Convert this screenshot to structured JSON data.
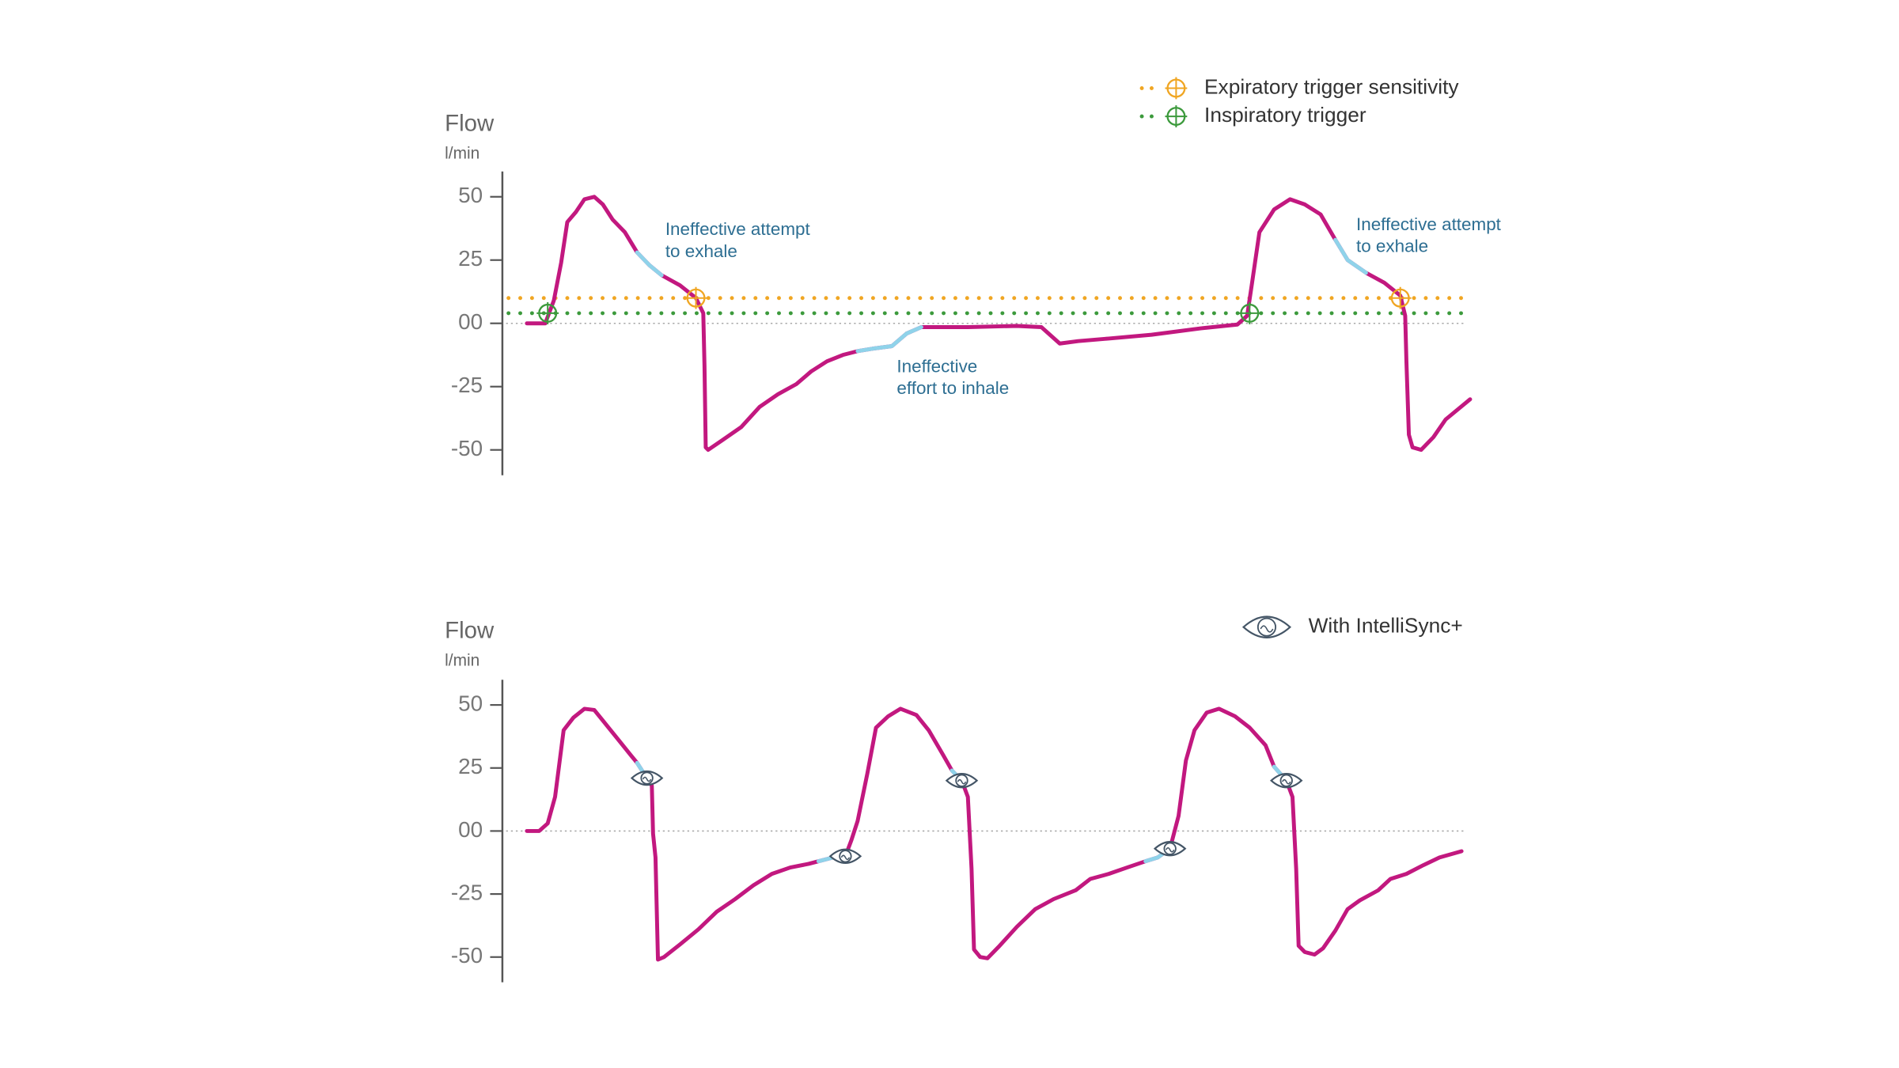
{
  "chart_data": [
    {
      "type": "line",
      "y_label": "Flow",
      "y_unit": "l/min",
      "ylim": [
        -60,
        60
      ],
      "yticks": [
        50,
        25,
        {
          "value": 0,
          "label": "00"
        },
        -25,
        -50
      ],
      "xlim": [
        0,
        800
      ],
      "x": [
        20,
        35,
        42,
        48,
        53,
        60,
        67,
        75,
        82,
        90,
        100,
        110,
        120,
        130,
        145,
        158,
        164,
        165,
        166,
        168,
        180,
        195,
        210,
        225,
        240,
        252,
        265,
        278,
        290,
        302,
        318,
        330,
        342,
        380,
        420,
        440,
        455,
        470,
        495,
        530,
        570,
        600,
        608,
        612,
        618,
        630,
        643,
        655,
        668,
        680,
        690,
        705,
        720,
        733,
        737,
        738,
        740,
        743,
        750,
        760,
        770,
        790
      ],
      "series": [
        {
          "color": "#c2187f",
          "values": [
            0,
            0,
            9,
            24,
            40,
            44,
            49,
            50,
            47,
            41,
            36,
            28,
            23,
            19,
            15,
            10,
            4,
            -17,
            -49,
            -50,
            -46,
            -41,
            -33,
            -28,
            -24,
            -19,
            -15,
            -12.5,
            -11,
            -10,
            -9,
            -4,
            -1.5,
            -1.5,
            -1,
            -1.5,
            -8,
            -7,
            -6,
            -4.5,
            -2,
            -0.5,
            3,
            16,
            36,
            45,
            49,
            47,
            43,
            33,
            25,
            20,
            16,
            11,
            3,
            -15,
            -44,
            -49,
            -50,
            -45,
            -38,
            -30
          ]
        },
        {
          "color": "#8fd3ea",
          "values": [
            null,
            null,
            null,
            null,
            null,
            null,
            null,
            null,
            null,
            null,
            null,
            28,
            23,
            19,
            null,
            null,
            null,
            null,
            null,
            null,
            null,
            null,
            null,
            null,
            null,
            null,
            null,
            null,
            -11,
            -10,
            -9,
            -4,
            -1.5,
            null,
            null,
            null,
            null,
            null,
            null,
            null,
            null,
            null,
            null,
            null,
            null,
            null,
            null,
            null,
            null,
            33,
            25,
            20,
            null,
            null,
            null,
            null,
            null,
            null,
            null,
            null,
            null,
            null
          ]
        }
      ],
      "zero_line": true,
      "reference_lines": [
        {
          "label": "Expiratory trigger sensitivity",
          "value": 10,
          "color": "#f0a623",
          "marker_x": [
            158,
            733
          ]
        },
        {
          "label": "Inspiratory trigger",
          "value": 4,
          "color": "#3c9a3c",
          "marker_x": [
            37,
            610
          ]
        }
      ],
      "annotations": [
        [
          "Ineffective attempt",
          "to exhale"
        ],
        [
          "Ineffective",
          "effort to inhale"
        ],
        [
          "Ineffective attempt",
          "to exhale"
        ]
      ],
      "annotation_color": "#2d6e92"
    },
    {
      "type": "line",
      "y_label": "Flow",
      "y_unit": "l/min",
      "ylim": [
        -60,
        60
      ],
      "yticks": [
        50,
        25,
        {
          "value": 0,
          "label": "00"
        },
        -25,
        -50
      ],
      "xlim": [
        0,
        800
      ],
      "x": [
        20,
        30,
        37,
        43,
        50,
        58,
        67,
        75,
        85,
        95,
        105,
        110,
        118,
        122,
        123,
        125,
        127,
        132,
        145,
        160,
        175,
        190,
        205,
        220,
        235,
        250,
        258,
        270,
        280,
        285,
        290,
        298,
        305,
        315,
        325,
        338,
        348,
        360,
        367,
        375,
        380,
        383,
        385,
        390,
        396,
        405,
        420,
        435,
        450,
        468,
        480,
        495,
        510,
        525,
        535,
        545,
        552,
        558,
        565,
        575,
        585,
        598,
        610,
        623,
        630,
        640,
        645,
        648,
        650,
        655,
        663,
        670,
        680,
        690,
        700,
        715,
        725,
        738,
        752,
        765,
        783
      ],
      "series": [
        {
          "color": "#c2187f",
          "values": [
            0,
            0,
            3,
            13.5,
            40,
            45,
            48.5,
            48,
            42,
            36,
            30,
            27,
            21,
            18,
            -1,
            -10.5,
            -51,
            -50,
            -45,
            -39,
            -32,
            -27,
            -21.5,
            -17,
            -14.5,
            -13,
            -12,
            -10.5,
            -10,
            -3.5,
            4,
            23,
            41,
            45.5,
            48.5,
            46,
            40,
            30,
            24,
            20,
            13.5,
            -15,
            -47,
            -50,
            -50.5,
            -46,
            -38,
            -31,
            -27,
            -23.5,
            -19,
            -17,
            -14.5,
            -12,
            -10.5,
            -7,
            6,
            28,
            40,
            47,
            48.5,
            45.5,
            41,
            34,
            25.5,
            20,
            13.5,
            -15,
            -45.5,
            -48,
            -49,
            -46.5,
            -39.5,
            -31,
            -27.5,
            -23.5,
            -19,
            -17,
            -13.5,
            -10.5,
            -8
          ]
        },
        {
          "color": "#8fd3ea",
          "values": [
            null,
            null,
            null,
            null,
            null,
            null,
            null,
            null,
            null,
            null,
            null,
            27,
            21,
            null,
            null,
            null,
            null,
            null,
            null,
            null,
            null,
            null,
            null,
            null,
            null,
            null,
            -12,
            -10.5,
            -10,
            null,
            null,
            null,
            null,
            null,
            null,
            null,
            null,
            null,
            24,
            20,
            null,
            null,
            null,
            null,
            null,
            null,
            null,
            null,
            null,
            null,
            null,
            null,
            null,
            -12,
            -10.5,
            -7,
            null,
            null,
            null,
            null,
            null,
            null,
            null,
            null,
            25.5,
            20,
            null,
            null,
            null,
            null,
            null,
            null,
            null,
            null,
            null,
            null,
            null,
            null,
            null,
            null,
            null
          ]
        }
      ],
      "zero_line": true,
      "events": {
        "label": "With IntelliSync+",
        "x": [
          118,
          280,
          375,
          545,
          640
        ]
      }
    }
  ]
}
